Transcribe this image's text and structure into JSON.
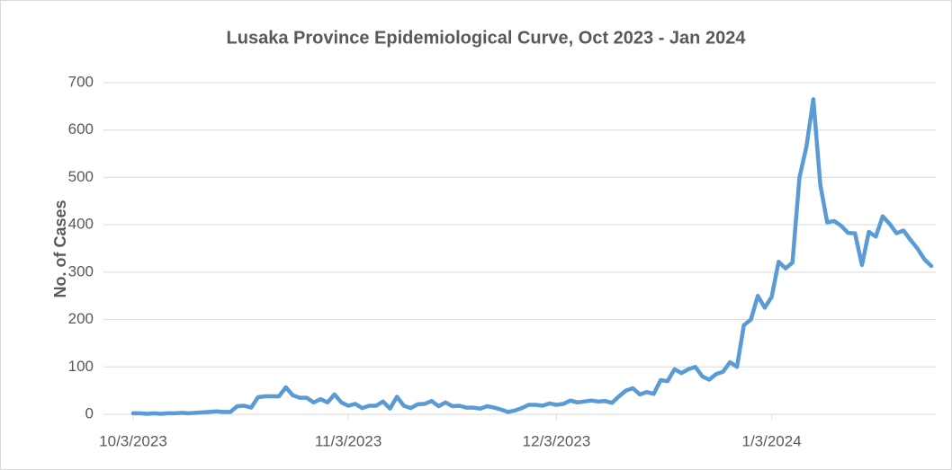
{
  "chart_data": {
    "type": "line",
    "title": "Lusaka Province Epidemiological Curve, Oct 2023 - Jan 2024",
    "y_label": "No. of Cases",
    "x": [
      "10/3/2023",
      "10/4/2023",
      "10/5/2023",
      "10/6/2023",
      "10/7/2023",
      "10/8/2023",
      "10/9/2023",
      "10/10/2023",
      "10/11/2023",
      "10/12/2023",
      "10/13/2023",
      "10/14/2023",
      "10/15/2023",
      "10/16/2023",
      "10/17/2023",
      "10/18/2023",
      "10/19/2023",
      "10/20/2023",
      "10/21/2023",
      "10/22/2023",
      "10/23/2023",
      "10/24/2023",
      "10/25/2023",
      "10/26/2023",
      "10/27/2023",
      "10/28/2023",
      "10/29/2023",
      "10/30/2023",
      "10/31/2023",
      "11/1/2023",
      "11/2/2023",
      "11/3/2023",
      "11/4/2023",
      "11/5/2023",
      "11/6/2023",
      "11/7/2023",
      "11/8/2023",
      "11/9/2023",
      "11/10/2023",
      "11/11/2023",
      "11/12/2023",
      "11/13/2023",
      "11/14/2023",
      "11/15/2023",
      "11/16/2023",
      "11/17/2023",
      "11/18/2023",
      "11/19/2023",
      "11/20/2023",
      "11/21/2023",
      "11/22/2023",
      "11/23/2023",
      "11/24/2023",
      "11/25/2023",
      "11/26/2023",
      "11/27/2023",
      "11/28/2023",
      "11/29/2023",
      "11/30/2023",
      "12/1/2023",
      "12/2/2023",
      "12/3/2023",
      "12/4/2023",
      "12/5/2023",
      "12/6/2023",
      "12/7/2023",
      "12/8/2023",
      "12/9/2023",
      "12/10/2023",
      "12/11/2023",
      "12/12/2023",
      "12/13/2023",
      "12/14/2023",
      "12/15/2023",
      "12/16/2023",
      "12/17/2023",
      "12/18/2023",
      "12/19/2023",
      "12/20/2023",
      "12/21/2023",
      "12/22/2023",
      "12/23/2023",
      "12/24/2023",
      "12/25/2023",
      "12/26/2023",
      "12/27/2023",
      "12/28/2023",
      "12/29/2023",
      "12/30/2023",
      "12/31/2023",
      "1/1/2024",
      "1/2/2024",
      "1/3/2024",
      "1/4/2024",
      "1/5/2024",
      "1/6/2024",
      "1/7/2024",
      "1/8/2024",
      "1/9/2024",
      "1/10/2024",
      "1/11/2024",
      "1/12/2024",
      "1/13/2024",
      "1/14/2024",
      "1/15/2024",
      "1/16/2024",
      "1/17/2024",
      "1/18/2024",
      "1/19/2024",
      "1/20/2024",
      "1/21/2024",
      "1/22/2024",
      "1/23/2024",
      "1/24/2024",
      "1/25/2024",
      "1/26/2024"
    ],
    "series": [
      {
        "name": "Cases",
        "color": "#5b9bd5",
        "values": [
          2,
          2,
          1,
          2,
          1,
          2,
          2,
          3,
          2,
          3,
          4,
          5,
          6,
          5,
          5,
          17,
          18,
          14,
          36,
          38,
          38,
          38,
          57,
          40,
          35,
          35,
          25,
          32,
          25,
          42,
          25,
          18,
          22,
          13,
          18,
          18,
          27,
          12,
          37,
          18,
          13,
          21,
          22,
          28,
          17,
          25,
          17,
          18,
          14,
          14,
          12,
          17,
          14,
          10,
          5,
          8,
          13,
          20,
          20,
          18,
          23,
          20,
          22,
          29,
          25,
          27,
          29,
          27,
          28,
          24,
          38,
          50,
          55,
          42,
          47,
          43,
          72,
          70,
          95,
          87,
          95,
          100,
          80,
          73,
          85,
          90,
          110,
          100,
          188,
          200,
          250,
          225,
          248,
          322,
          308,
          320,
          500,
          565,
          665,
          485,
          405,
          408,
          398,
          383,
          382,
          315,
          385,
          375,
          418,
          402,
          382,
          388,
          368,
          350,
          327,
          313
        ]
      }
    ],
    "xlim": [
      "10/3/2023",
      "1/26/2024"
    ],
    "xticks": [
      "10/3/2023",
      "11/3/2023",
      "12/3/2023",
      "1/3/2024"
    ],
    "ylim": [
      0,
      700
    ],
    "yticks": [
      0,
      100,
      200,
      300,
      400,
      500,
      600,
      700
    ],
    "grid": true
  }
}
